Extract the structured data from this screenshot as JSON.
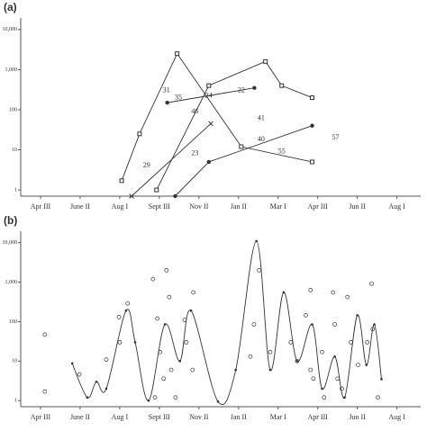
{
  "chart_data": [
    {
      "type": "line",
      "title": "(a)",
      "yscale": "log",
      "color": "#333333",
      "xlim": [
        -0.5,
        9.6
      ],
      "ylim": [
        0.7,
        15000
      ],
      "xticks": [
        {
          "value": 0,
          "label": "Apr III"
        },
        {
          "value": 1,
          "label": "June II"
        },
        {
          "value": 2,
          "label": "Aug I"
        },
        {
          "value": 3,
          "label": "Sept III"
        },
        {
          "value": 4,
          "label": "Nov II"
        },
        {
          "value": 5,
          "label": "Jan II"
        },
        {
          "value": 6,
          "label": "Mar I"
        },
        {
          "value": 7,
          "label": "Apr III"
        },
        {
          "value": 8,
          "label": "Jun II"
        },
        {
          "value": 9,
          "label": "Aug I"
        }
      ],
      "yticks": [
        1,
        10,
        100,
        {
          "value": 1000,
          "label": "1,000"
        },
        {
          "value": 10000,
          "label": "10,000"
        }
      ],
      "series": [
        {
          "x": [
            2.05,
            2.5,
            3.45,
            5.07,
            6.86
          ],
          "values": [
            1.7,
            25,
            2500,
            12,
            5
          ]
        },
        {
          "x": [
            2.3,
            4.3
          ],
          "values": [
            0.7,
            45
          ]
        },
        {
          "x": [
            2.93,
            4.25,
            5.68,
            6.09,
            6.86
          ],
          "values": [
            1,
            400,
            1600,
            400,
            200
          ]
        },
        {
          "x": [
            3.2,
            5.4
          ],
          "values": [
            150,
            350
          ]
        },
        {
          "x": [
            3.4,
            4.25,
            6.86
          ],
          "values": [
            0.7,
            5,
            40
          ]
        }
      ],
      "annotations": [
        {
          "text": "31",
          "x": 3.18,
          "y": 300
        },
        {
          "text": "35",
          "x": 3.48,
          "y": 200
        },
        {
          "text": "29",
          "x": 2.68,
          "y": 4
        },
        {
          "text": "23",
          "x": 3.9,
          "y": 8
        },
        {
          "text": "46",
          "x": 3.9,
          "y": 90
        },
        {
          "text": "24",
          "x": 4.25,
          "y": 220
        },
        {
          "text": "22",
          "x": 5.07,
          "y": 300
        },
        {
          "text": "41",
          "x": 5.57,
          "y": 60
        },
        {
          "text": "40",
          "x": 5.57,
          "y": 18
        },
        {
          "text": "55",
          "x": 6.09,
          "y": 9
        },
        {
          "text": "57",
          "x": 7.45,
          "y": 20
        }
      ]
    },
    {
      "type": "line",
      "title": "(b)",
      "yscale": "log",
      "color": "#333333",
      "xlim": [
        -0.5,
        9.6
      ],
      "ylim": [
        0.7,
        15000
      ],
      "xticks": [
        {
          "value": 0,
          "label": "Apr III"
        },
        {
          "value": 1,
          "label": "June II"
        },
        {
          "value": 2,
          "label": "Aug I"
        },
        {
          "value": 3,
          "label": "Sept III"
        },
        {
          "value": 4,
          "label": "Nov II"
        },
        {
          "value": 5,
          "label": "Jan II"
        },
        {
          "value": 6,
          "label": "Mar I"
        },
        {
          "value": 7,
          "label": "Apr III"
        },
        {
          "value": 8,
          "label": "Jun II"
        },
        {
          "value": 9,
          "label": "Aug I"
        }
      ],
      "yticks": [
        1,
        10,
        100,
        {
          "value": 1000,
          "label": "1,000"
        },
        {
          "value": 10000,
          "label": "10,000"
        }
      ],
      "series": [
        {
          "mode": "smooth",
          "x": [
            0.8,
            1.18,
            1.41,
            1.66,
            2.16,
            2.39,
            2.73,
            3.14,
            3.52,
            3.8,
            4.48,
            4.93,
            5.45,
            5.8,
            6.14,
            6.48,
            6.86,
            7.11,
            7.43,
            7.68,
            8.0,
            8.23,
            8.43,
            8.61
          ],
          "values": [
            8.8,
            1.2,
            3,
            2,
            190,
            30,
            1,
            85,
            10,
            190,
            0.95,
            6,
            11000,
            6,
            550,
            10,
            85,
            2,
            13,
            1.2,
            145,
            8,
            85,
            3.5
          ]
        },
        {
          "mode": "markers",
          "x": [
            0.11,
            0.11,
            0.98,
            1.66,
            1.98,
            2.0,
            2.2,
            2.89,
            2.84,
            2.95,
            3.02,
            3.18,
            3.25,
            3.11,
            3.3,
            3.41,
            3.64,
            3.68,
            3.86,
            3.84,
            5.3,
            5.39,
            5.52,
            5.8,
            6.32,
            6.48,
            6.7,
            6.82,
            6.82,
            6.89,
            7.11,
            7.16,
            7.39,
            7.43,
            7.5,
            7.61,
            7.75,
            7.84,
            8.02,
            8.25,
            8.36,
            8.39,
            8.52
          ],
          "values": [
            47,
            1.7,
            4.6,
            11,
            130,
            30,
            290,
            1.2,
            1200,
            120,
            17,
            2000,
            420,
            3.6,
            6,
            1.2,
            110,
            30,
            550,
            6,
            13,
            85,
            2000,
            17,
            30,
            10,
            145,
            630,
            6,
            3.6,
            17,
            1.2,
            550,
            85,
            3.6,
            2,
            420,
            30,
            8,
            30,
            920,
            65,
            1.2
          ]
        }
      ]
    }
  ]
}
